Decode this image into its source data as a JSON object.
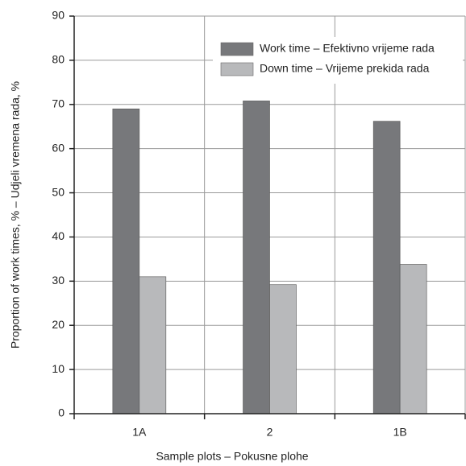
{
  "chart_data": {
    "type": "bar",
    "xlabel": "Sample plots  –  Pokusne plohe",
    "ylabel": "Proportion of work times, %  –  Udjeli vremena rada, %",
    "categories": [
      "1A",
      "2",
      "1B"
    ],
    "series": [
      {
        "name": "Work time – Efektivno vrijeme rada",
        "color": "#77787b",
        "values": [
          69,
          70.8,
          66.2
        ]
      },
      {
        "name": "Down time – Vrijeme prekida rada",
        "color": "#b8b9bb",
        "values": [
          31,
          29.2,
          33.8
        ]
      }
    ],
    "ylim": [
      0,
      90
    ],
    "yticks": [
      0,
      10,
      20,
      30,
      40,
      50,
      60,
      70,
      80,
      90
    ],
    "grid": true,
    "legend": "upper right"
  }
}
